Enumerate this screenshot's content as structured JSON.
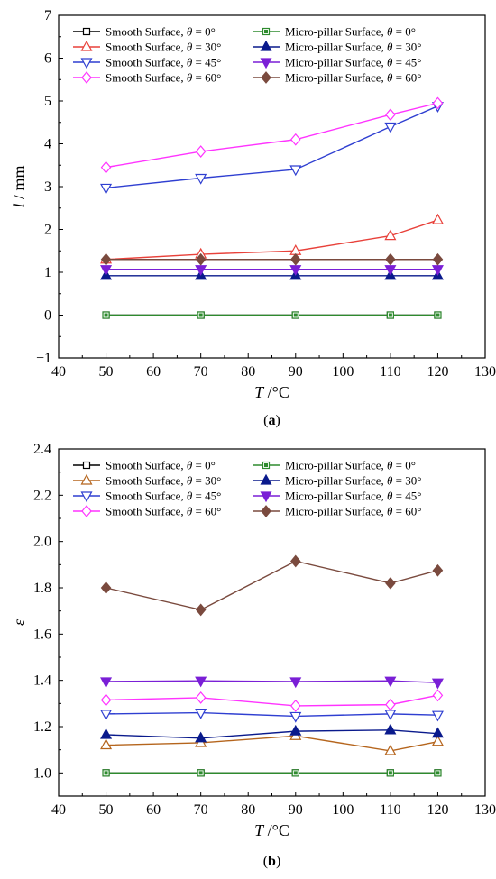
{
  "chart_data": [
    {
      "type": "line",
      "panel_label": "(a)",
      "panel_letter": "a",
      "xlabel": "T",
      "xunit": " /°C",
      "ylabel": "l",
      "yunit": " / mm",
      "xlim": [
        40,
        130
      ],
      "ylim": [
        -1,
        7
      ],
      "xticks": [
        40,
        50,
        60,
        70,
        80,
        90,
        100,
        110,
        120,
        130
      ],
      "yticks": [
        -1,
        0,
        1,
        2,
        3,
        4,
        5,
        6,
        7
      ],
      "ytick_labels": [
        "−1",
        "0",
        "1",
        "2",
        "3",
        "4",
        "5",
        "6",
        "7"
      ],
      "grid": false,
      "legend_position": "top",
      "x": [
        50,
        70,
        90,
        110,
        120
      ],
      "series": [
        {
          "name": "Smooth Surface, θ = 0°",
          "color": "#000000",
          "marker": "square-open",
          "values": [
            0,
            0,
            0,
            0,
            0
          ]
        },
        {
          "name": "Smooth Surface, θ = 30°",
          "color": "#e8413a",
          "marker": "triangle-up-open",
          "values": [
            1.3,
            1.42,
            1.5,
            1.85,
            2.22
          ]
        },
        {
          "name": "Smooth Surface, θ = 45°",
          "color": "#2f3fd1",
          "marker": "triangle-down-open",
          "values": [
            2.97,
            3.2,
            3.4,
            4.4,
            4.88
          ]
        },
        {
          "name": "Smooth Surface, θ = 60°",
          "color": "#ff33ff",
          "marker": "diamond-open",
          "values": [
            3.45,
            3.82,
            4.1,
            4.68,
            4.95
          ]
        },
        {
          "name": "Micro-pillar Surface, θ = 0°",
          "color": "#2e8b2e",
          "marker": "square-filled",
          "values": [
            0,
            0,
            0,
            0,
            0
          ]
        },
        {
          "name": "Micro-pillar Surface, θ = 30°",
          "color": "#0a1a8c",
          "marker": "triangle-up-filled",
          "values": [
            0.92,
            0.92,
            0.92,
            0.92,
            0.92
          ]
        },
        {
          "name": "Micro-pillar Surface, θ = 45°",
          "color": "#7a1fd6",
          "marker": "triangle-down-filled",
          "values": [
            1.07,
            1.07,
            1.07,
            1.07,
            1.07
          ]
        },
        {
          "name": "Micro-pillar Surface, θ = 60°",
          "color": "#7a4a3e",
          "marker": "diamond-filled",
          "values": [
            1.3,
            1.3,
            1.3,
            1.3,
            1.3
          ]
        }
      ]
    },
    {
      "type": "line",
      "panel_label": "(b)",
      "panel_letter": "b",
      "xlabel": "T",
      "xunit": " /°C",
      "ylabel": "ε",
      "yunit": "",
      "xlim": [
        40,
        130
      ],
      "ylim": [
        0.9,
        2.4
      ],
      "xticks": [
        40,
        50,
        60,
        70,
        80,
        90,
        100,
        110,
        120,
        130
      ],
      "yticks": [
        1.0,
        1.2,
        1.4,
        1.6,
        1.8,
        2.0,
        2.2,
        2.4
      ],
      "ytick_labels": [
        "1.0",
        "1.2",
        "1.4",
        "1.6",
        "1.8",
        "2.0",
        "2.2",
        "2.4"
      ],
      "grid": false,
      "legend_position": "top",
      "x": [
        50,
        70,
        90,
        110,
        120
      ],
      "series": [
        {
          "name": "Smooth Surface, θ = 0°",
          "color": "#000000",
          "marker": "square-open",
          "values": [
            1.0,
            1.0,
            1.0,
            1.0,
            1.0
          ]
        },
        {
          "name": "Smooth Surface, θ = 30°",
          "color": "#b5651d",
          "marker": "triangle-up-open",
          "values": [
            1.12,
            1.13,
            1.16,
            1.095,
            1.135
          ]
        },
        {
          "name": "Smooth Surface, θ = 45°",
          "color": "#2f3fd1",
          "marker": "triangle-down-open",
          "values": [
            1.255,
            1.26,
            1.245,
            1.255,
            1.25
          ]
        },
        {
          "name": "Smooth Surface, θ = 60°",
          "color": "#ff33ff",
          "marker": "diamond-open",
          "values": [
            1.315,
            1.325,
            1.29,
            1.295,
            1.335
          ]
        },
        {
          "name": "Micro-pillar Surface, θ = 0°",
          "color": "#2e8b2e",
          "marker": "square-filled",
          "values": [
            1.0,
            1.0,
            1.0,
            1.0,
            1.0
          ]
        },
        {
          "name": "Micro-pillar Surface, θ = 30°",
          "color": "#0a1a8c",
          "marker": "triangle-up-filled",
          "values": [
            1.165,
            1.15,
            1.18,
            1.185,
            1.17
          ]
        },
        {
          "name": "Micro-pillar Surface, θ = 45°",
          "color": "#7a1fd6",
          "marker": "triangle-down-filled",
          "values": [
            1.395,
            1.398,
            1.395,
            1.398,
            1.39
          ]
        },
        {
          "name": "Micro-pillar Surface, θ = 60°",
          "color": "#7a4a3e",
          "marker": "diamond-filled",
          "values": [
            1.8,
            1.705,
            1.915,
            1.82,
            1.875
          ]
        }
      ]
    }
  ]
}
